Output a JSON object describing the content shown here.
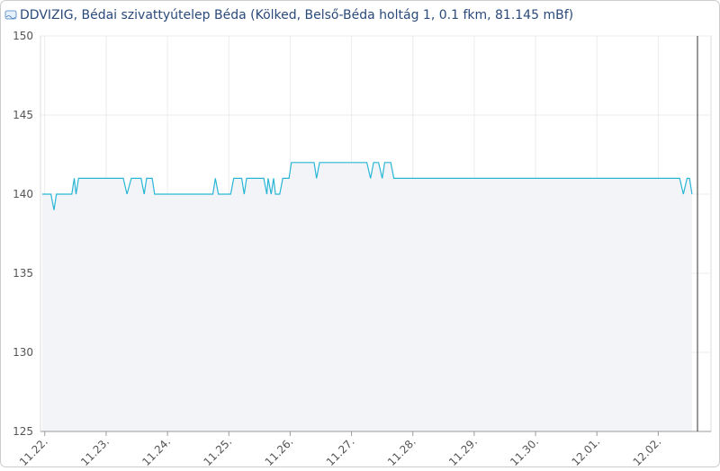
{
  "chart_data": {
    "type": "area",
    "title": "DDVIZIG, Bédai szivattyútelep Béda (Kölked, Belső-Béda holtág 1, 0.1 fkm, 81.145 mBf)",
    "x": [
      -0.04,
      0.1,
      0.15,
      0.19,
      0.44,
      0.48,
      0.51,
      0.55,
      1.28,
      1.34,
      1.41,
      1.57,
      1.62,
      1.66,
      1.75,
      1.79,
      2.74,
      2.78,
      2.83,
      3.03,
      3.08,
      3.21,
      3.25,
      3.29,
      3.57,
      3.62,
      3.64,
      3.69,
      3.73,
      3.76,
      3.83,
      3.88,
      3.98,
      4.02,
      4.39,
      4.43,
      4.48,
      5.25,
      5.31,
      5.36,
      5.44,
      5.5,
      5.54,
      5.64,
      5.69,
      10.35,
      10.41,
      10.47,
      10.51,
      10.55
    ],
    "values": [
      140,
      140,
      139,
      140,
      140,
      141,
      140,
      141,
      141,
      140,
      141,
      141,
      140,
      141,
      141,
      140,
      140,
      141,
      140,
      140,
      141,
      141,
      140,
      141,
      141,
      140,
      141,
      140,
      141,
      140,
      140,
      141,
      141,
      142,
      142,
      141,
      142,
      142,
      141,
      142,
      142,
      141,
      142,
      142,
      141,
      141,
      140,
      141,
      141,
      140
    ],
    "color": "#29b6d6",
    "fill": "#f3f4f8",
    "xlim": [
      -0.07,
      10.86
    ],
    "xticks": [
      {
        "value": 0,
        "label": "11.22."
      },
      {
        "value": 1,
        "label": "11.23."
      },
      {
        "value": 2,
        "label": "11.24."
      },
      {
        "value": 3,
        "label": "11.25."
      },
      {
        "value": 4,
        "label": "11.26."
      },
      {
        "value": 5,
        "label": "11.27."
      },
      {
        "value": 6,
        "label": "11.28."
      },
      {
        "value": 7,
        "label": "11.29."
      },
      {
        "value": 8,
        "label": "11.30."
      },
      {
        "value": 9,
        "label": "12.01."
      },
      {
        "value": 10,
        "label": "12.02."
      }
    ],
    "ylim": [
      125,
      150
    ],
    "yticks": [
      125,
      130,
      135,
      140,
      145,
      150
    ],
    "grid": true
  }
}
